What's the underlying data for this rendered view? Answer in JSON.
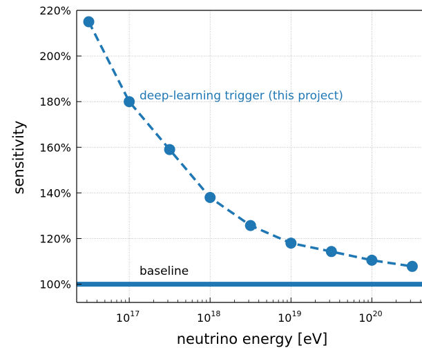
{
  "chart_data": {
    "type": "line",
    "xlabel": "neutrino energy [eV]",
    "ylabel": "sensitivity",
    "xscale": "log",
    "x_ticks": [
      {
        "base": "10",
        "exp": "17",
        "value": 1e+17
      },
      {
        "base": "10",
        "exp": "18",
        "value": 1e+18
      },
      {
        "base": "10",
        "exp": "19",
        "value": 1e+19
      },
      {
        "base": "10",
        "exp": "20",
        "value": 1e+20
      }
    ],
    "y_ticks": [
      "100%",
      "120%",
      "140%",
      "160%",
      "180%",
      "200%",
      "220%"
    ],
    "y_tick_values": [
      100,
      120,
      140,
      160,
      180,
      200,
      220
    ],
    "ylim": [
      92,
      220
    ],
    "grid": true,
    "series": [
      {
        "name": "deep-learning trigger (this project)",
        "color": "#1f77b4",
        "style": "dashed line with circle markers",
        "x": [
          3.16e+16,
          1e+17,
          3.16e+17,
          1e+18,
          3.16e+18,
          1e+19,
          3.16e+19,
          1e+20,
          3.16e+20
        ],
        "y": [
          215,
          180,
          159,
          138,
          125.7,
          118,
          114.3,
          110.5,
          107.8
        ]
      },
      {
        "name": "baseline",
        "color": "#1f77b4",
        "style": "solid thick line",
        "y": 100
      }
    ]
  }
}
